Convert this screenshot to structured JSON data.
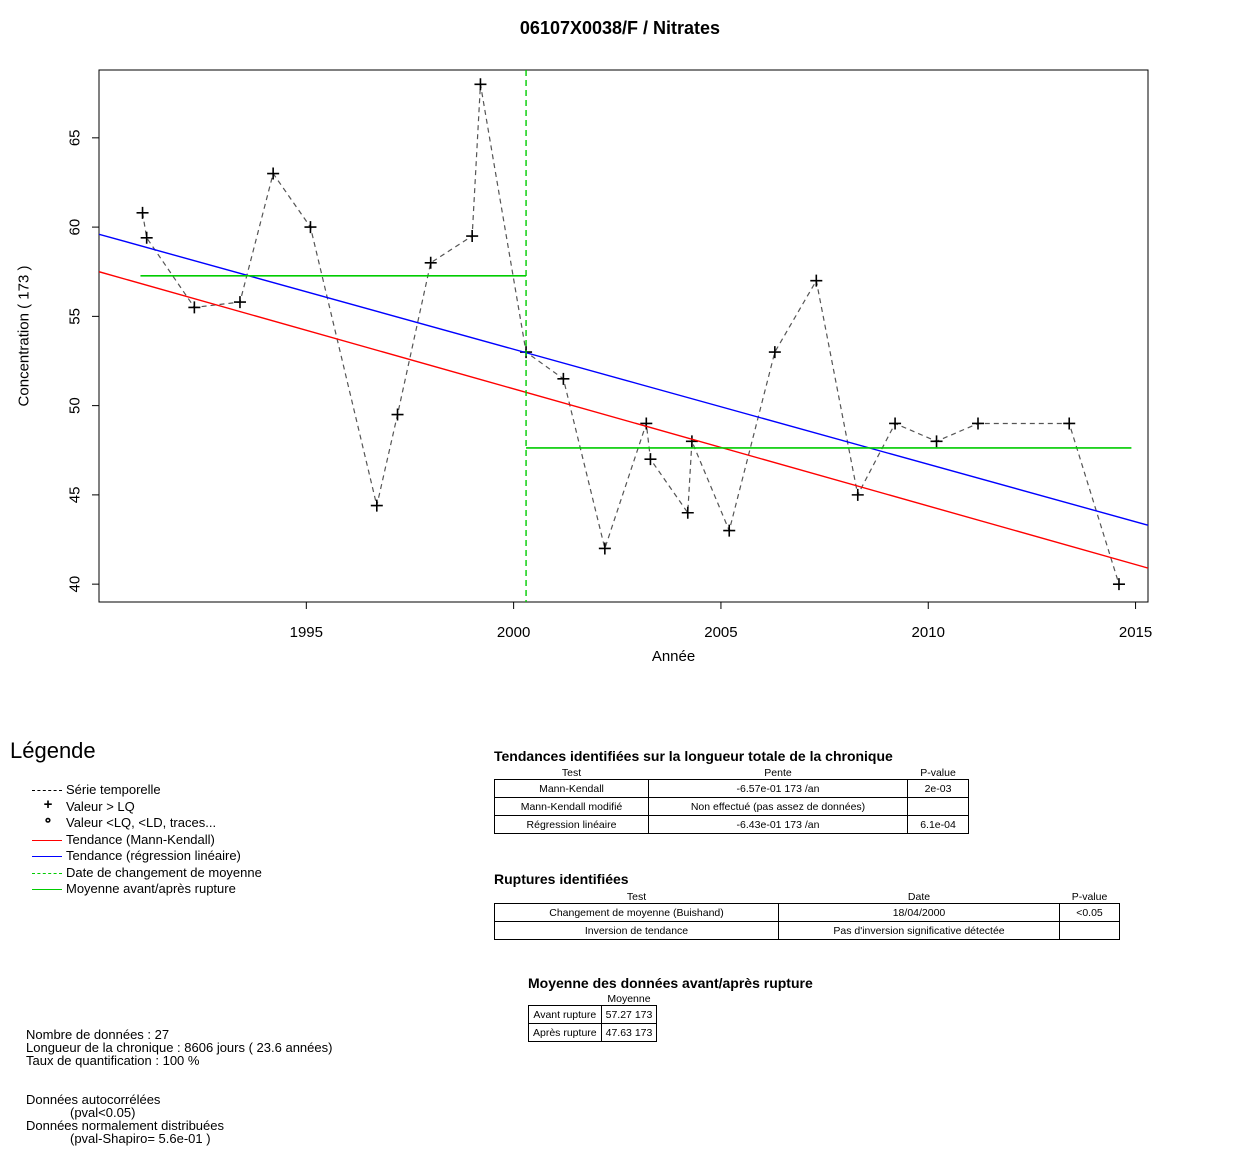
{
  "chart_data": {
    "type": "line",
    "title": "06107X0038/F / Nitrates",
    "xlabel": "Année",
    "ylabel": "Concentration  ( 173 )",
    "xlim": [
      1990.0,
      2015.3
    ],
    "ylim": [
      39.0,
      68.8
    ],
    "xticks": [
      1995,
      2000,
      2005,
      2010,
      2015
    ],
    "yticks": [
      40,
      45,
      50,
      55,
      60,
      65
    ],
    "grid": false,
    "series": [
      {
        "name": "Série temporelle",
        "style": "dashed",
        "color": "#555555",
        "marker": "+",
        "x": [
          1991.05,
          1991.15,
          1992.3,
          1993.4,
          1994.2,
          1995.1,
          1996.7,
          1997.2,
          1998.0,
          1999.0,
          1999.2,
          2000.3,
          2001.2,
          2002.2,
          2003.2,
          2003.3,
          2004.2,
          2004.3,
          2005.2,
          2006.3,
          2007.3,
          2008.3,
          2009.2,
          2010.2,
          2011.2,
          2013.4,
          2014.6
        ],
        "y": [
          60.8,
          59.4,
          55.5,
          55.8,
          63.0,
          60.0,
          44.4,
          49.5,
          58.0,
          59.5,
          68.0,
          53.0,
          51.5,
          42.0,
          49.0,
          47.0,
          44.0,
          48.0,
          43.0,
          53.0,
          57.0,
          45.0,
          49.0,
          48.0,
          49.0,
          49.0,
          40.0
        ]
      },
      {
        "name": "Tendance (Mann-Kendall)",
        "color": "#ff0000",
        "x": [
          1990.0,
          2015.3
        ],
        "y": [
          57.5,
          40.9
        ]
      },
      {
        "name": "Tendance (régression linéaire)",
        "color": "#0000ff",
        "x": [
          1990.0,
          2015.3
        ],
        "y": [
          59.6,
          43.3
        ]
      },
      {
        "name": "Moyenne avant/après rupture",
        "color": "#00cc00",
        "segments": [
          {
            "x": [
              1991.0,
              2000.3
            ],
            "y": [
              57.27,
              57.27
            ]
          },
          {
            "x": [
              2000.3,
              2014.9
            ],
            "y": [
              47.63,
              47.63
            ]
          }
        ]
      },
      {
        "name": "Date de changement de moyenne",
        "color": "#00cc00",
        "style": "dashed",
        "vline": 2000.3
      }
    ]
  },
  "legend": {
    "title": "Légende",
    "items": [
      {
        "label": "Série temporelle",
        "kind": "dashed",
        "color": "#000000"
      },
      {
        "label": "Valeur > LQ",
        "kind": "plus",
        "color": "#000000"
      },
      {
        "label": "Valeur <LQ, <LD, traces...",
        "kind": "circle",
        "color": "#000000"
      },
      {
        "label": "Tendance (Mann-Kendall)",
        "kind": "solid",
        "color": "#ff0000"
      },
      {
        "label": "Tendance (régression linéaire)",
        "kind": "solid",
        "color": "#0000ff"
      },
      {
        "label": "Date de changement de moyenne",
        "kind": "dashed",
        "color": "#00cc00"
      },
      {
        "label": "Moyenne avant/après rupture",
        "kind": "solid",
        "color": "#00cc00"
      }
    ]
  },
  "stats": {
    "line1": "Nombre de données : 27",
    "line2": "Longueur de la chronique : 8606 jours ( 23.6 années)",
    "line3": "Taux de quantification : 100 %",
    "line4": "Données autocorrélées",
    "line5": "(pval<0.05)",
    "line6": "Données normalement distribuées",
    "line7": "(pval-Shapiro= 5.6e-01 )"
  },
  "trends": {
    "title": "Tendances identifiées sur la longueur totale de la chronique",
    "headers": [
      "Test",
      "Pente",
      "P-value"
    ],
    "rows": [
      [
        "Mann-Kendall",
        "-6.57e-01 173 /an",
        "2e-03"
      ],
      [
        "Mann-Kendall modifié",
        "Non effectué (pas assez de données)",
        ""
      ],
      [
        "Régression linéaire",
        "-6.43e-01 173 /an",
        "6.1e-04"
      ]
    ]
  },
  "ruptures": {
    "title": "Ruptures identifiées",
    "headers": [
      "Test",
      "Date",
      "P-value"
    ],
    "rows": [
      [
        "Changement de moyenne (Buishand)",
        "18/04/2000",
        "<0.05"
      ],
      [
        "Inversion de tendance",
        "Pas d'inversion significative détectée",
        ""
      ]
    ]
  },
  "means": {
    "title": "Moyenne des données avant/après rupture",
    "header": "Moyenne",
    "rows": [
      [
        "Avant rupture",
        "57.27 173"
      ],
      [
        "Après rupture",
        "47.63 173"
      ]
    ]
  }
}
